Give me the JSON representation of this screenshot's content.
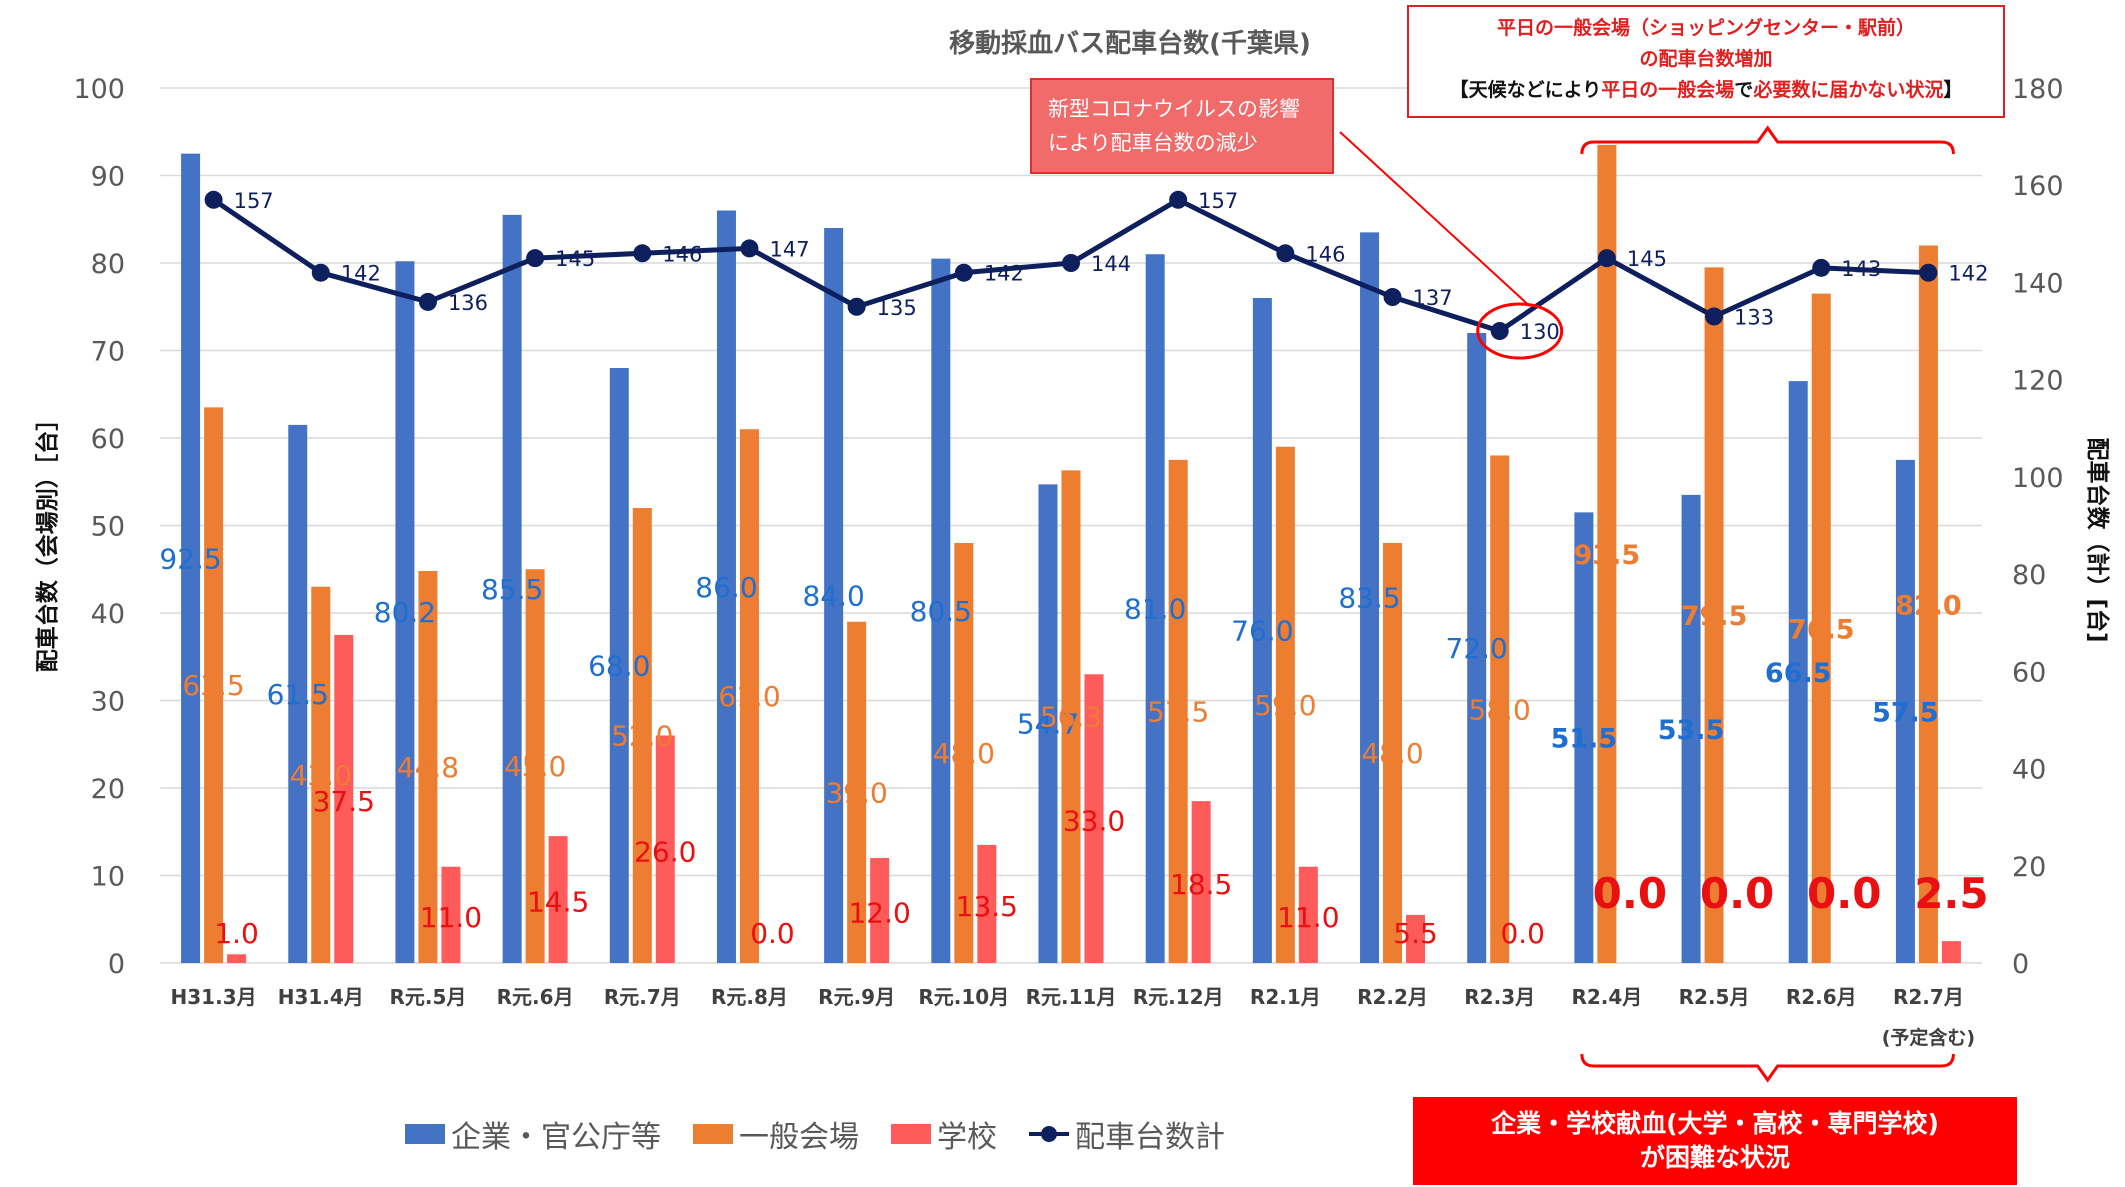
{
  "chart_data": {
    "type": "bar",
    "title": "移動採血バス配車台数(千葉県)",
    "ylabel_left": "配車台数（会場別）［台］",
    "ylabel_right": "配車台数（計）[台]",
    "ylim_left": [
      0,
      100
    ],
    "ylim_right": [
      0,
      180
    ],
    "left_ticks": [
      0,
      10,
      20,
      30,
      40,
      50,
      60,
      70,
      80,
      90,
      100
    ],
    "right_ticks": [
      0,
      20,
      40,
      60,
      80,
      100,
      120,
      140,
      160,
      180
    ],
    "grid": true,
    "legend_position": "bottom",
    "categories": [
      "H31.3月",
      "H31.4月",
      "R元.5月",
      "R元.6月",
      "R元.7月",
      "R元.8月",
      "R元.9月",
      "R元.10月",
      "R元.11月",
      "R元.12月",
      "R2.1月",
      "R2.2月",
      "R2.3月",
      "R2.4月",
      "R2.5月",
      "R2.6月",
      "R2.7月"
    ],
    "category_note": "(予定含む)",
    "series": [
      {
        "name": "企業・官公庁等",
        "type": "bar",
        "axis": "left",
        "color": "#4472c4",
        "values": [
          92.5,
          61.5,
          80.2,
          85.5,
          68.0,
          86.0,
          84.0,
          80.5,
          54.7,
          81.0,
          76.0,
          83.5,
          72.0,
          51.5,
          53.5,
          66.5,
          57.5
        ],
        "labels": [
          "92.5",
          "61.5",
          "80.2",
          "85.5",
          "68.0",
          "86.0",
          "84.0",
          "80.5",
          "54.7",
          "81.0",
          "76.0",
          "83.5",
          "72.0",
          "51.5",
          "53.5",
          "66.5",
          "57.5"
        ]
      },
      {
        "name": "一般会場",
        "type": "bar",
        "axis": "left",
        "color": "#ed7d31",
        "values": [
          63.5,
          43.0,
          44.8,
          45.0,
          52.0,
          61.0,
          39.0,
          48.0,
          56.3,
          57.5,
          59.0,
          48.0,
          58.0,
          93.5,
          79.5,
          76.5,
          82.0
        ],
        "labels": [
          "63.5",
          "43.0",
          "44.8",
          "45.0",
          "52.0",
          "61.0",
          "39.0",
          "48.0",
          "56.3",
          "57.5",
          "59.0",
          "48.0",
          "58.0",
          "93.5",
          "79.5",
          "76.5",
          "82.0"
        ]
      },
      {
        "name": "学校",
        "type": "bar",
        "axis": "left",
        "color": "#ff5b5b",
        "values": [
          1.0,
          37.5,
          11.0,
          14.5,
          26.0,
          0.0,
          12.0,
          13.5,
          33.0,
          18.5,
          11.0,
          5.5,
          0.0,
          0.0,
          0.0,
          0.0,
          2.5
        ],
        "labels": [
          "1.0",
          "37.5",
          "11.0",
          "14.5",
          "26.0",
          "0.0",
          "12.0",
          "13.5",
          "33.0",
          "18.5",
          "11.0",
          "5.5",
          "0.0",
          "0.0",
          "0.0",
          "0.0",
          "2.5"
        ]
      },
      {
        "name": "配車台数計",
        "type": "line",
        "axis": "right",
        "color": "#0d1f5c",
        "values": [
          157,
          142,
          136,
          145,
          146,
          147,
          135,
          142,
          144,
          157,
          146,
          137,
          130,
          145,
          133,
          143,
          142
        ],
        "labels": [
          "157",
          "142",
          "136",
          "145",
          "146",
          "147",
          "135",
          "142",
          "144",
          "157",
          "146",
          "137",
          "130",
          "145",
          "133",
          "143",
          "142"
        ]
      }
    ]
  },
  "annotations": {
    "covid_line1": "新型コロナウイルスの影響",
    "covid_line2": "により配車台数の減少",
    "general_line1": "平日の一般会場（ショッピングセンター・駅前）",
    "general_line2": "の配車台数増加",
    "general_line3a": "【天候などにより",
    "general_line3b": "平日の一般会場",
    "general_line3c": "で",
    "general_line3d": "必要数に届かない状況",
    "general_line3e": "】",
    "school_line1": "企業・学校献血(大学・高校・専門学校)",
    "school_line2": "が困難な状況"
  }
}
